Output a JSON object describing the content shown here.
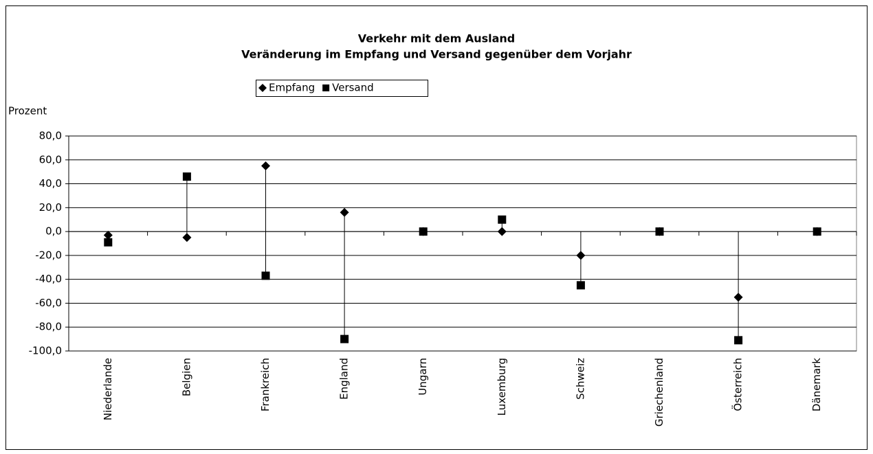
{
  "chart_data": {
    "type": "hilo-scatter",
    "title": "Verkehr mit dem Ausland",
    "subtitle": "Veränderung im Empfang und Versand gegenüber dem Vorjahr",
    "y_axis_label": "Prozent",
    "categories": [
      "Niederlande",
      "Belgien",
      "Frankreich",
      "England",
      "Ungarn",
      "Luxemburg",
      "Schweiz",
      "Griechenland",
      "Österreich",
      "Dänemark"
    ],
    "series": [
      {
        "name": "Empfang",
        "color": "#000000",
        "marker": "diamond",
        "values": [
          -3,
          -5,
          55,
          16,
          0,
          0,
          -20,
          0,
          -55,
          0
        ]
      },
      {
        "name": "Versand",
        "color": "#000000",
        "marker": "square",
        "values": [
          -9,
          46,
          -37,
          -90,
          0,
          10,
          -45,
          0,
          -91,
          0
        ]
      }
    ],
    "ylim": [
      -100,
      80
    ],
    "yticks": [
      {
        "value": -100,
        "label": "-100,0"
      },
      {
        "value": -80,
        "label": "-80,0"
      },
      {
        "value": -60,
        "label": "-60,0"
      },
      {
        "value": -40,
        "label": "-40,0"
      },
      {
        "value": -20,
        "label": "-20,0"
      },
      {
        "value": 0,
        "label": "0,0"
      },
      {
        "value": 20,
        "label": "20,0"
      },
      {
        "value": 40,
        "label": "40,0"
      },
      {
        "value": 60,
        "label": "60,0"
      },
      {
        "value": 80,
        "label": "80,0"
      }
    ],
    "grid": true,
    "legend": "top"
  }
}
